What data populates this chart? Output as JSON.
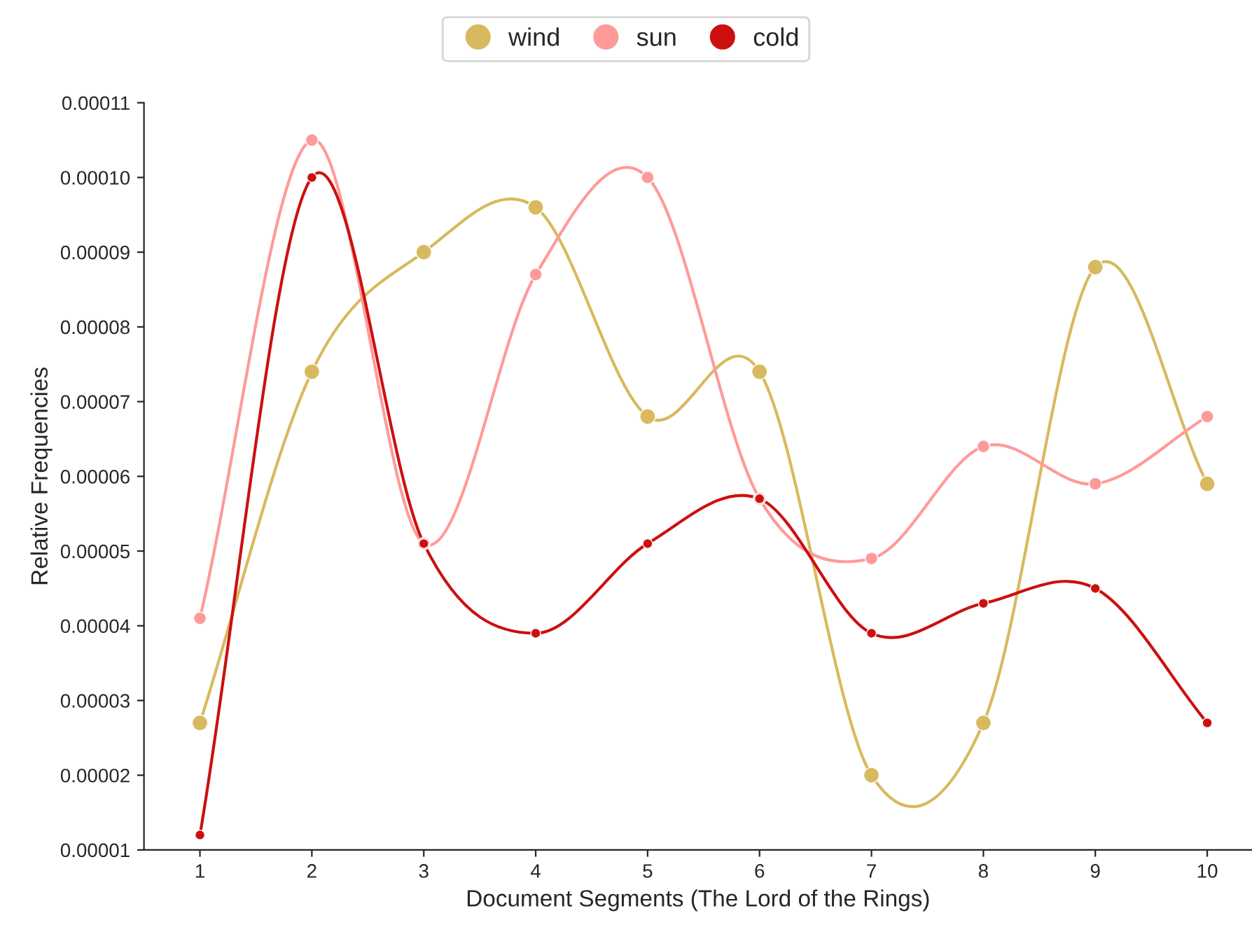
{
  "chart_data": {
    "type": "line",
    "xlabel": "Document Segments (The Lord of the Rings)",
    "ylabel": "Relative Frequencies",
    "x": [
      1,
      2,
      3,
      4,
      5,
      6,
      7,
      8,
      9,
      10
    ],
    "series": [
      {
        "name": "wind",
        "color": "#d9b95f",
        "values": [
          2.7e-05,
          7.4e-05,
          9e-05,
          9.6e-05,
          6.8e-05,
          7.4e-05,
          2e-05,
          2.7e-05,
          8.8e-05,
          5.9e-05
        ]
      },
      {
        "name": "sun",
        "color": "#ff9a9a",
        "values": [
          4.1e-05,
          0.000105,
          5.1e-05,
          8.7e-05,
          0.0001,
          5.7e-05,
          4.9e-05,
          6.4e-05,
          5.9e-05,
          6.8e-05
        ]
      },
      {
        "name": "cold",
        "color": "#cc1010",
        "values": [
          1.2e-05,
          0.0001,
          5.1e-05,
          3.9e-05,
          5.1e-05,
          5.7e-05,
          3.9e-05,
          4.3e-05,
          4.5e-05,
          2.7e-05
        ]
      }
    ],
    "xlim": [
      0.5,
      10.4
    ],
    "xticks": [
      1,
      2,
      3,
      4,
      5,
      6,
      7,
      8,
      9,
      10
    ],
    "ylim": [
      1e-05,
      0.00011
    ],
    "yticks": [
      {
        "value": 1e-05,
        "label": "0.00001"
      },
      {
        "value": 2e-05,
        "label": "0.00002"
      },
      {
        "value": 3e-05,
        "label": "0.00003"
      },
      {
        "value": 4e-05,
        "label": "0.00004"
      },
      {
        "value": 5e-05,
        "label": "0.00005"
      },
      {
        "value": 6e-05,
        "label": "0.00006"
      },
      {
        "value": 7e-05,
        "label": "0.00007"
      },
      {
        "value": 8e-05,
        "label": "0.00008"
      },
      {
        "value": 9e-05,
        "label": "0.00009"
      },
      {
        "value": 0.0001,
        "label": "0.00010"
      },
      {
        "value": 0.00011,
        "label": "0.00011"
      }
    ],
    "marker": "circle",
    "legend": "top",
    "grid": false
  }
}
